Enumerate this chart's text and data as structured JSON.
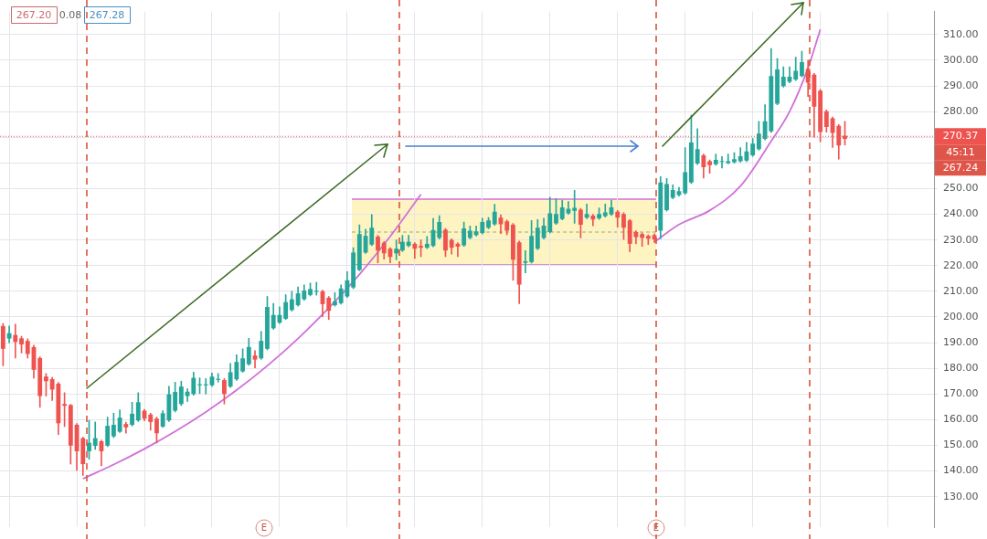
{
  "chart_data": {
    "type": "candlestick",
    "categories": [
      null,
      null,
      null,
      null,
      null,
      null,
      null,
      null,
      null,
      null,
      null,
      null,
      null,
      null,
      null,
      null,
      null,
      null,
      null,
      null,
      null,
      null,
      null,
      null,
      null,
      null,
      null,
      null,
      null,
      null,
      null,
      null,
      null,
      null,
      null,
      null,
      null,
      null,
      null,
      null,
      null,
      null,
      null,
      null,
      null,
      null,
      null,
      null,
      null,
      null,
      null,
      null,
      null,
      null,
      null,
      null,
      null,
      null,
      null,
      null,
      null,
      null,
      null,
      null,
      null,
      null,
      null,
      null,
      null,
      null,
      null,
      null,
      null,
      null,
      null,
      null,
      null,
      null,
      null,
      null,
      null,
      null,
      null,
      null,
      null,
      null,
      null,
      null,
      null,
      null,
      null,
      null,
      null,
      null,
      null,
      null,
      null,
      null,
      null,
      null,
      null,
      null,
      null,
      null,
      null,
      null,
      null,
      null,
      null,
      null,
      null,
      null,
      null,
      null,
      null,
      null,
      null,
      null,
      null,
      null,
      null,
      null,
      null,
      null,
      null,
      null,
      null,
      null,
      null,
      null,
      null,
      null,
      null,
      null,
      null,
      null,
      null,
      null,
      null,
      null,
      null,
      null,
      null,
      null,
      null,
      null,
      null,
      null,
      null,
      null,
      null,
      null
    ],
    "ohlc": [
      [
        196.5,
        197.5,
        181,
        187.6
      ],
      [
        191.6,
        196.5,
        190,
        193.7
      ],
      [
        193,
        197.2,
        184,
        190.3
      ],
      [
        191.7,
        192.5,
        186,
        189.3
      ],
      [
        190.7,
        191.5,
        184,
        185.6
      ],
      [
        188.3,
        189,
        176.2,
        179.4
      ],
      [
        184,
        184.5,
        164.8,
        169.2
      ],
      [
        176.8,
        178,
        169.2,
        175
      ],
      [
        175.8,
        176.5,
        167.5,
        171.7
      ],
      [
        174,
        174.5,
        154.2,
        158.6
      ],
      [
        166.1,
        170.5,
        157.3,
        165.4
      ],
      [
        165.7,
        166,
        142.7,
        149.9
      ],
      [
        158,
        158.5,
        140.2,
        147.7
      ],
      [
        152.8,
        153.2,
        138.3,
        142.7
      ],
      [
        147.7,
        159.7,
        144.6,
        151
      ],
      [
        149.8,
        159.1,
        148.4,
        152.8
      ],
      [
        151.6,
        152,
        142,
        147.7
      ],
      [
        149.9,
        161,
        149.5,
        157.6
      ],
      [
        153.5,
        162.5,
        153,
        158
      ],
      [
        155.3,
        163.8,
        155,
        160.8
      ],
      [
        158.3,
        159,
        154.7,
        157
      ],
      [
        158,
        166.8,
        157.5,
        162.3
      ],
      [
        159.7,
        170.5,
        159.3,
        166.8
      ],
      [
        163.5,
        164,
        159.5,
        160.4
      ],
      [
        162,
        162.5,
        155.9,
        159.1
      ],
      [
        160.4,
        161,
        150.9,
        154.7
      ],
      [
        157.3,
        163.5,
        157,
        162.5
      ],
      [
        159.7,
        173,
        159.3,
        169.9
      ],
      [
        163.5,
        174.6,
        163,
        170.8
      ],
      [
        166.1,
        175,
        165.5,
        172.9
      ],
      [
        169.2,
        172,
        167.1,
        170.9
      ],
      [
        170,
        178.5,
        169.5,
        176.3
      ],
      [
        173.4,
        176.3,
        170.2,
        173.8
      ],
      [
        173.4,
        176,
        170,
        173.8
      ],
      [
        173.4,
        178.2,
        173,
        176.8
      ],
      [
        175.5,
        178,
        174.6,
        175.9
      ],
      [
        175.4,
        176,
        166.1,
        170
      ],
      [
        172.9,
        181.9,
        172.5,
        178.5
      ],
      [
        175.7,
        185.3,
        175.3,
        182.5
      ],
      [
        178.8,
        187.6,
        178.5,
        183.9
      ],
      [
        181.6,
        191.7,
        181.2,
        188.3
      ],
      [
        185,
        186.9,
        180.2,
        183.4
      ],
      [
        183.9,
        194.4,
        183.5,
        190.7
      ],
      [
        187.6,
        208,
        187.2,
        203.9
      ],
      [
        195.6,
        205.3,
        195.2,
        200.8
      ],
      [
        197.8,
        204,
        197.4,
        200.8
      ],
      [
        199.3,
        208.7,
        199,
        205.8
      ],
      [
        202.7,
        210,
        202.3,
        206.9
      ],
      [
        204.6,
        211.7,
        204.2,
        209.2
      ],
      [
        206.9,
        212.5,
        206.5,
        210.3
      ],
      [
        208.6,
        213.2,
        208.2,
        210.9
      ],
      [
        209.8,
        213.5,
        208.5,
        210.2
      ],
      [
        210,
        210.5,
        200.1,
        205
      ],
      [
        207.5,
        208,
        199,
        202.4
      ],
      [
        204.6,
        209.5,
        204.2,
        206.1
      ],
      [
        205.4,
        212.5,
        205,
        211.1
      ],
      [
        208,
        217.7,
        207.6,
        214.3
      ],
      [
        211.5,
        227,
        211,
        225.1
      ],
      [
        218.3,
        235.9,
        218,
        232.3
      ],
      [
        225.1,
        234.2,
        224.8,
        231.6
      ],
      [
        228.2,
        239.9,
        227.8,
        234.8
      ],
      [
        231.3,
        231.8,
        221.1,
        225.9
      ],
      [
        228.9,
        229.4,
        222.5,
        224.8
      ],
      [
        226.6,
        227,
        221.1,
        223.4
      ],
      [
        224.8,
        230,
        222.3,
        226.6
      ],
      [
        225.9,
        231.8,
        225.5,
        229.3
      ],
      [
        227.7,
        231.8,
        227.3,
        229.3
      ],
      [
        228.5,
        229,
        222.8,
        226.6
      ],
      [
        227.7,
        230,
        223.5,
        227
      ],
      [
        227,
        231.4,
        226.6,
        228.5
      ],
      [
        227.7,
        238.4,
        227.3,
        233.9
      ],
      [
        230.8,
        239.5,
        230.4,
        237
      ],
      [
        234,
        234.5,
        223.5,
        225.9
      ],
      [
        230,
        230.5,
        224.5,
        227
      ],
      [
        228.5,
        229,
        223.5,
        227.4
      ],
      [
        227.9,
        237,
        227.5,
        234.5
      ],
      [
        230.8,
        235.5,
        230.4,
        233.6
      ],
      [
        231.9,
        235.5,
        231.5,
        233.4
      ],
      [
        232.7,
        238.5,
        232.3,
        237
      ],
      [
        234.8,
        238.8,
        234.4,
        237.6
      ],
      [
        236.1,
        243.9,
        235.7,
        241
      ],
      [
        238.7,
        239.8,
        232.5,
        236.1
      ],
      [
        237.3,
        237.8,
        232,
        233.6
      ],
      [
        235.9,
        236.4,
        214.3,
        222.3
      ],
      [
        229.1,
        229.6,
        205.2,
        212.6
      ],
      [
        221.1,
        225.9,
        217.2,
        221.7
      ],
      [
        221.4,
        237.6,
        221,
        231.6
      ],
      [
        226.6,
        238,
        226.2,
        234.8
      ],
      [
        230.8,
        238.5,
        230.4,
        235.6
      ],
      [
        233.1,
        246.7,
        232.7,
        240.4
      ],
      [
        236.5,
        246.1,
        236.1,
        240.1
      ],
      [
        238.2,
        245.5,
        237.8,
        242.7
      ],
      [
        240.4,
        245,
        240,
        242.2
      ],
      [
        241.4,
        249.3,
        236.5,
        242.5
      ],
      [
        241.8,
        242.3,
        230.8,
        235.9
      ],
      [
        238.7,
        244,
        238.3,
        240.1
      ],
      [
        239.5,
        240,
        235.5,
        238
      ],
      [
        238.4,
        242.5,
        238,
        240.1
      ],
      [
        239.3,
        244,
        238.9,
        240.7
      ],
      [
        239.9,
        245.5,
        239.5,
        242.7
      ],
      [
        241,
        241.5,
        235,
        238.7
      ],
      [
        240.1,
        240.6,
        230.2,
        234.8
      ],
      [
        237.6,
        238,
        225.4,
        228.5
      ],
      [
        233.1,
        233.6,
        228.5,
        231.1
      ],
      [
        232.3,
        232.8,
        227.5,
        230.8
      ],
      [
        231.6,
        232,
        228.2,
        230.5
      ],
      [
        231.9,
        232.4,
        229,
        230.2
      ],
      [
        233.6,
        254.7,
        230.5,
        252.4
      ],
      [
        241.6,
        254,
        241.2,
        251.8
      ],
      [
        246.4,
        251.5,
        246,
        249.5
      ],
      [
        247.5,
        250.5,
        247.1,
        249
      ],
      [
        248.2,
        266,
        247.8,
        256.4
      ],
      [
        252.4,
        278.6,
        252,
        268
      ],
      [
        259.8,
        273.4,
        259.4,
        265.4
      ],
      [
        263,
        263.5,
        254.1,
        258.4
      ],
      [
        260.7,
        261.2,
        256,
        259.2
      ],
      [
        259.5,
        263.5,
        259.1,
        261.2
      ],
      [
        260.4,
        262.5,
        258,
        260.6
      ],
      [
        260,
        263.5,
        259.6,
        260.7
      ],
      [
        260.3,
        264,
        259.9,
        261.5
      ],
      [
        260.7,
        266,
        260.3,
        262.6
      ],
      [
        260.9,
        268,
        260.5,
        264.5
      ],
      [
        263,
        269.5,
        262.6,
        267.5
      ],
      [
        265.4,
        276.2,
        265,
        271.4
      ],
      [
        269.4,
        282.7,
        269,
        276.2
      ],
      [
        272.3,
        304.6,
        271.9,
        293.9
      ],
      [
        283.1,
        300.7,
        282.7,
        296.4
      ],
      [
        289.9,
        297.5,
        289.5,
        293.6
      ],
      [
        291.6,
        297.5,
        291.2,
        293.6
      ],
      [
        292.5,
        301.2,
        292.1,
        295.9
      ],
      [
        293.9,
        303.5,
        293.5,
        299.3
      ],
      [
        296.7,
        300,
        285.9,
        291.3
      ],
      [
        294.4,
        294.9,
        270,
        281.9
      ],
      [
        288.2,
        288.7,
        268.3,
        272.1
      ],
      [
        280.2,
        280.7,
        272,
        274
      ],
      [
        277.4,
        277.9,
        266,
        271.7
      ],
      [
        274.5,
        275,
        261.5,
        266.8
      ],
      [
        270.6,
        276.2,
        267,
        269.4
      ],
      null,
      null,
      null,
      null,
      null,
      null,
      null,
      null,
      null,
      null,
      null,
      null,
      null,
      null
    ],
    "colors": [
      "#ef5350",
      "#26a69a",
      "#ef5350",
      "#ef5350",
      "#ef5350",
      "#ef5350",
      "#ef5350",
      "#ef5350",
      "#ef5350",
      "#ef5350",
      "#ef5350",
      "#ef5350",
      "#ef5350",
      "#ef5350",
      "#26a69a",
      "#26a69a",
      "#ef5350",
      "#26a69a",
      "#26a69a",
      "#26a69a",
      "#ef5350",
      "#26a69a",
      "#26a69a",
      "#ef5350",
      "#ef5350",
      "#ef5350",
      "#26a69a",
      "#26a69a",
      "#26a69a",
      "#26a69a",
      "#26a69a",
      "#26a69a",
      "#26a69a",
      "#26a69a",
      "#26a69a",
      "#26a69a",
      "#ef5350",
      "#26a69a",
      "#26a69a",
      "#26a69a",
      "#26a69a",
      "#ef5350",
      "#26a69a",
      "#26a69a",
      "#26a69a",
      "#26a69a",
      "#26a69a",
      "#26a69a",
      "#26a69a",
      "#26a69a",
      "#26a69a",
      "#26a69a",
      "#ef5350",
      "#ef5350",
      "#26a69a",
      "#26a69a",
      "#26a69a",
      "#26a69a",
      "#26a69a",
      "#26a69a",
      "#26a69a",
      "#ef5350",
      "#ef5350",
      "#ef5350",
      "#26a69a",
      "#26a69a",
      "#26a69a",
      "#ef5350",
      "#ef5350",
      "#26a69a",
      "#26a69a",
      "#26a69a",
      "#ef5350",
      "#ef5350",
      "#ef5350",
      "#26a69a",
      "#26a69a",
      "#26a69a",
      "#26a69a",
      "#26a69a",
      "#26a69a",
      "#ef5350",
      "#ef5350",
      "#ef5350",
      "#ef5350",
      "#26a69a",
      "#26a69a",
      "#26a69a",
      "#26a69a",
      "#26a69a",
      "#26a69a",
      "#26a69a",
      "#26a69a",
      "#26a69a",
      "#ef5350",
      "#26a69a",
      "#ef5350",
      "#26a69a",
      "#26a69a",
      "#26a69a",
      "#ef5350",
      "#ef5350",
      "#ef5350",
      "#ef5350",
      "#ef5350",
      "#ef5350",
      "#ef5350",
      "#26a69a",
      "#26a69a",
      "#26a69a",
      "#26a69a",
      "#26a69a",
      "#26a69a",
      "#26a69a",
      "#ef5350",
      "#ef5350",
      "#26a69a",
      "#26a69a",
      "#26a69a",
      "#26a69a",
      "#26a69a",
      "#26a69a",
      "#26a69a",
      "#26a69a",
      "#26a69a",
      "#26a69a",
      "#26a69a",
      "#26a69a",
      "#26a69a",
      "#26a69a",
      "#26a69a",
      "#ef5350",
      "#ef5350",
      "#ef5350",
      "#ef5350",
      "#ef5350",
      "#ef5350",
      "#ef5350",
      null,
      null,
      null,
      null,
      null,
      null,
      null,
      null,
      null,
      null,
      null,
      null,
      null,
      null
    ],
    "series": [
      {
        "type": "line",
        "color": "#d070d8",
        "values": [
          null,
          null,
          null,
          null,
          null,
          null,
          null,
          null,
          null,
          null,
          null,
          null,
          null,
          137,
          null,
          null,
          null,
          null,
          142.5,
          null,
          null,
          null,
          null,
          148.6,
          null,
          null,
          null,
          null,
          155.4,
          null,
          null,
          null,
          null,
          163.0,
          null,
          null,
          null,
          null,
          171.5,
          null,
          null,
          null,
          null,
          181.0,
          null,
          null,
          null,
          null,
          191.6,
          null,
          null,
          null,
          null,
          203.5,
          null,
          null,
          null,
          null,
          216.6,
          null,
          null,
          null,
          null,
          231.4,
          null,
          null,
          null,
          null,
          247.8,
          null,
          null,
          null,
          null,
          null,
          null,
          null,
          null,
          null,
          null,
          null,
          null,
          null,
          null,
          null,
          null,
          null,
          null,
          null,
          null,
          null,
          null,
          null,
          null,
          null,
          null,
          null,
          null,
          null,
          null,
          null,
          null,
          null,
          null,
          null,
          null,
          null,
          null,
          null,
          null,
          null,
          null,
          null,
          null,
          null,
          null,
          null,
          null,
          null,
          null,
          null,
          null,
          null,
          null,
          null,
          null,
          null,
          null,
          null,
          null,
          null,
          null,
          null,
          null,
          null,
          null,
          null,
          null,
          null,
          null,
          null,
          null,
          null,
          null,
          null,
          null,
          null,
          null,
          null,
          null,
          null,
          null,
          null
        ]
      },
      {
        "type": "line",
        "color": "#d070d8",
        "values": [
          null,
          null,
          null,
          null,
          null,
          null,
          null,
          null,
          null,
          null,
          null,
          null,
          null,
          null,
          null,
          null,
          null,
          null,
          null,
          null,
          null,
          null,
          null,
          null,
          null,
          null,
          null,
          null,
          null,
          null,
          null,
          null,
          null,
          null,
          null,
          null,
          null,
          null,
          null,
          null,
          null,
          null,
          null,
          null,
          null,
          null,
          null,
          null,
          null,
          null,
          null,
          null,
          null,
          null,
          null,
          null,
          null,
          null,
          null,
          null,
          null,
          null,
          null,
          null,
          null,
          null,
          null,
          null,
          null,
          null,
          null,
          null,
          null,
          null,
          null,
          null,
          null,
          null,
          null,
          null,
          null,
          null,
          null,
          null,
          null,
          null,
          null,
          null,
          null,
          null,
          null,
          null,
          null,
          null,
          null,
          null,
          null,
          null,
          null,
          null,
          null,
          null,
          null,
          null,
          null,
          null,
          229.2,
          null,
          null,
          null,
          236,
          null,
          null,
          null,
          null,
          241.5,
          null,
          null,
          null,
          null,
          251,
          null,
          null,
          null,
          null,
          268.5,
          null,
          null,
          280,
          null,
          null,
          297,
          null,
          312,
          null,
          null,
          null,
          null,
          null,
          null,
          null,
          null,
          null,
          null,
          null,
          null,
          null,
          null,
          null,
          null,
          null,
          null
        ]
      }
    ],
    "ylim": [
      118,
      319
    ],
    "yticks": [
      {
        "value": 130,
        "label": "130.00"
      },
      {
        "value": 140,
        "label": "140.00"
      },
      {
        "value": 150,
        "label": "150.00"
      },
      {
        "value": 160,
        "label": "160.00"
      },
      {
        "value": 170,
        "label": "170.00"
      },
      {
        "value": 180,
        "label": "180.00"
      },
      {
        "value": 190,
        "label": "190.00"
      },
      {
        "value": 200,
        "label": "200.00"
      },
      {
        "value": 210,
        "label": "210.00"
      },
      {
        "value": 220,
        "label": "220.00"
      },
      {
        "value": 230,
        "label": "230.00"
      },
      {
        "value": 240,
        "label": "240.00"
      },
      {
        "value": 250,
        "label": "250.00"
      },
      {
        "value": 260,
        "label": null
      },
      {
        "value": 270,
        "label": null
      },
      {
        "value": 280,
        "label": "280.00"
      },
      {
        "value": 290,
        "label": "290.00"
      },
      {
        "value": 300,
        "label": "300.00"
      },
      {
        "value": 310,
        "label": "310.00"
      }
    ],
    "ref_lines": [
      {
        "axis": "y",
        "value": 270.37,
        "label": "270.37",
        "color": "#ef5350",
        "line_style": "dotted"
      }
    ],
    "annotations": [
      "267.20",
      "0.08",
      "267.28",
      "45:11",
      "267.24",
      "E",
      "E"
    ],
    "grid": true
  }
}
